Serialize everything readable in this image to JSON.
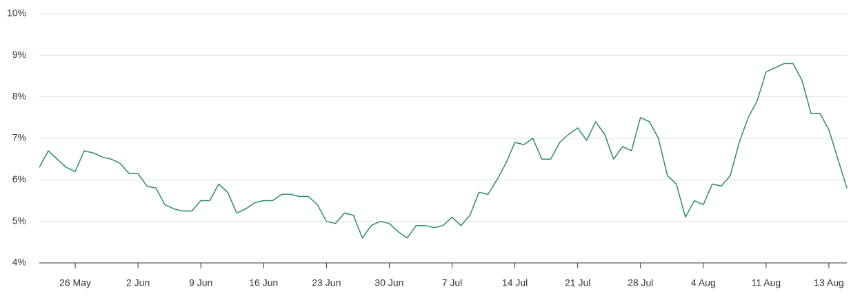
{
  "chart_data": {
    "type": "line",
    "categories": [
      null,
      null,
      null,
      null,
      "26 May",
      null,
      null,
      null,
      null,
      null,
      null,
      "2 Jun",
      null,
      null,
      null,
      null,
      null,
      null,
      "9 Jun",
      null,
      null,
      null,
      null,
      null,
      null,
      "16 Jun",
      null,
      null,
      null,
      null,
      null,
      null,
      "23 Jun",
      null,
      null,
      null,
      null,
      null,
      null,
      "30 Jun",
      null,
      null,
      null,
      null,
      null,
      null,
      "7 Jul",
      null,
      null,
      null,
      null,
      null,
      null,
      "14 Jul",
      null,
      null,
      null,
      null,
      null,
      null,
      "21 Jul",
      null,
      null,
      null,
      null,
      null,
      null,
      "28 Jul",
      null,
      null,
      null,
      null,
      null,
      null,
      "4 Aug",
      null,
      null,
      null,
      null,
      null,
      null,
      "11 Aug",
      null,
      null,
      null,
      null,
      null,
      null,
      "13 Aug",
      null,
      null
    ],
    "values": [
      6.3,
      6.7,
      6.5,
      6.3,
      6.2,
      6.7,
      6.65,
      6.55,
      6.5,
      6.4,
      6.15,
      6.15,
      5.85,
      5.8,
      5.4,
      5.3,
      5.25,
      5.25,
      5.5,
      5.5,
      5.9,
      5.7,
      5.2,
      5.3,
      5.45,
      5.5,
      5.5,
      5.65,
      5.65,
      5.6,
      5.6,
      5.4,
      5.0,
      4.95,
      5.2,
      5.15,
      4.6,
      4.9,
      5.0,
      4.95,
      4.75,
      4.6,
      4.9,
      4.9,
      4.85,
      4.9,
      5.1,
      4.9,
      5.15,
      5.7,
      5.65,
      6.0,
      6.4,
      6.9,
      6.85,
      7.0,
      6.5,
      6.5,
      6.9,
      7.1,
      7.25,
      6.95,
      7.4,
      7.1,
      6.5,
      6.8,
      6.7,
      7.5,
      7.4,
      7.0,
      6.1,
      5.9,
      5.1,
      5.5,
      5.4,
      5.9,
      5.85,
      6.1,
      6.9,
      7.5,
      7.9,
      8.6,
      8.7,
      8.8,
      8.8,
      8.4,
      7.6,
      7.6,
      7.2,
      6.5,
      5.8
    ],
    "color": "#2a8c62",
    "ylim": [
      4,
      10
    ],
    "yticks": [
      {
        "value": 4,
        "label": "4%"
      },
      {
        "value": 5,
        "label": "5%"
      },
      {
        "value": 6,
        "label": "6%"
      },
      {
        "value": 7,
        "label": "7%"
      },
      {
        "value": 8,
        "label": "8%"
      },
      {
        "value": 9,
        "label": "9%"
      },
      {
        "value": 10,
        "label": "10%"
      }
    ],
    "grid": true
  }
}
